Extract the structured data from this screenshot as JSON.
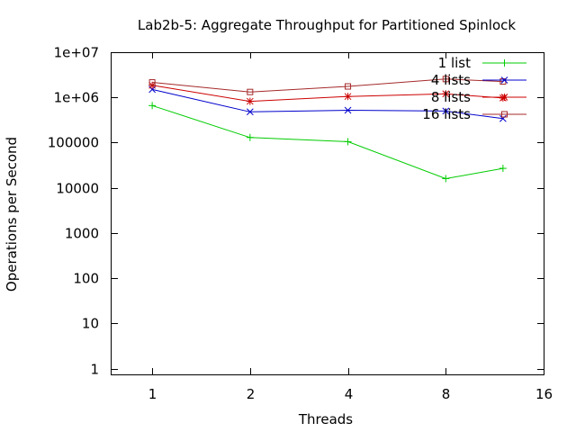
{
  "chart_data": {
    "type": "line",
    "title": "Lab2b-5: Aggregate Throughput for Partitioned Spinlock",
    "xlabel": "Threads",
    "ylabel": "Operations per Second",
    "x_scale": "log2",
    "y_scale": "log10",
    "xlim": [
      0.75,
      16
    ],
    "ylim": [
      0.75,
      10000000
    ],
    "x_ticks": [
      {
        "value": 1,
        "label": "1"
      },
      {
        "value": 2,
        "label": "2"
      },
      {
        "value": 4,
        "label": "4"
      },
      {
        "value": 8,
        "label": "8"
      },
      {
        "value": 16,
        "label": "16"
      }
    ],
    "y_ticks": [
      {
        "value": 1,
        "label": "1"
      },
      {
        "value": 10,
        "label": "10"
      },
      {
        "value": 100,
        "label": "100"
      },
      {
        "value": 1000,
        "label": "1000"
      },
      {
        "value": 10000,
        "label": "10000"
      },
      {
        "value": 100000,
        "label": "100000"
      },
      {
        "value": 1000000,
        "label": "1e+06"
      },
      {
        "value": 10000000,
        "label": "1e+07"
      }
    ],
    "grid": false,
    "legend_position": "top-right",
    "series": [
      {
        "name": "1 list",
        "color": "#00cc00",
        "marker": "plus",
        "x": [
          1,
          2,
          4,
          8,
          12
        ],
        "y": [
          660000,
          130000,
          105000,
          16000,
          27000
        ]
      },
      {
        "name": "4 lists",
        "color": "#0000cc",
        "marker": "cross",
        "x": [
          1,
          2,
          4,
          8,
          12
        ],
        "y": [
          1500000,
          480000,
          520000,
          500000,
          340000
        ]
      },
      {
        "name": "8 lists",
        "color": "#cc0000",
        "marker": "star",
        "x": [
          1,
          2,
          4,
          8,
          12
        ],
        "y": [
          1850000,
          820000,
          1050000,
          1200000,
          970000
        ]
      },
      {
        "name": "16 lists",
        "color": "#a52a2a",
        "marker": "square",
        "x": [
          1,
          2,
          4,
          8,
          12
        ],
        "y": [
          2150000,
          1320000,
          1750000,
          2550000,
          2250000
        ]
      }
    ]
  }
}
